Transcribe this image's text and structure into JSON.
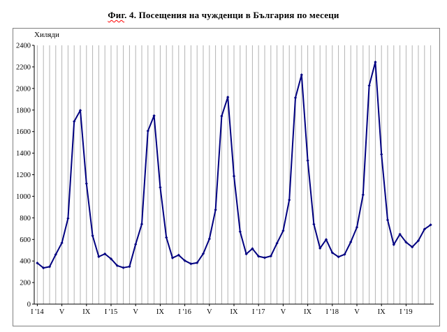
{
  "title": {
    "part1": "Фиг",
    "part2": ". 4. Посещения на чужденци в България по месеци"
  },
  "chart": {
    "y_axis_title": "Хиляди"
  },
  "chart_data": {
    "type": "line",
    "title": "Фиг. 4. Посещения на чужденци в България по месеци",
    "ylabel": "Хиляди",
    "xlabel": "",
    "ylim": [
      0,
      2400
    ],
    "y_tick_step": 200,
    "y_tick_labels": [
      "0",
      "200",
      "400",
      "600",
      "800",
      "1000",
      "1200",
      "1400",
      "1600",
      "1800",
      "2000",
      "2200",
      "2400"
    ],
    "grid": "vertical gridline at every month",
    "legend": "none",
    "line_color": "#000080",
    "marker": "diamond",
    "x_frequency": "monthly",
    "x_start": "2014-01",
    "x_end": "2019-05",
    "x_tick_labels": [
      {
        "index": 0,
        "label": "I '14"
      },
      {
        "index": 4,
        "label": "V"
      },
      {
        "index": 8,
        "label": "IX"
      },
      {
        "index": 12,
        "label": "I '15"
      },
      {
        "index": 16,
        "label": "V"
      },
      {
        "index": 20,
        "label": "IX"
      },
      {
        "index": 24,
        "label": "I '16"
      },
      {
        "index": 28,
        "label": "V"
      },
      {
        "index": 32,
        "label": "IX"
      },
      {
        "index": 36,
        "label": "I '17"
      },
      {
        "index": 40,
        "label": "V"
      },
      {
        "index": 44,
        "label": "IX"
      },
      {
        "index": 48,
        "label": "I '18"
      },
      {
        "index": 52,
        "label": "V"
      },
      {
        "index": 56,
        "label": "IX"
      },
      {
        "index": 60,
        "label": "I '19"
      }
    ],
    "series": [
      {
        "name": "Посещения на чужденци в България (хиляди)",
        "values": [
          381,
          336,
          347,
          460,
          568,
          795,
          1694,
          1797,
          1117,
          634,
          440,
          466,
          420,
          357,
          338,
          348,
          555,
          742,
          1606,
          1747,
          1083,
          618,
          428,
          455,
          403,
          374,
          383,
          468,
          605,
          874,
          1744,
          1920,
          1187,
          672,
          465,
          514,
          443,
          430,
          446,
          565,
          680,
          966,
          1914,
          2127,
          1332,
          741,
          518,
          599,
          477,
          438,
          461,
          576,
          712,
          1014,
          2027,
          2245,
          1389,
          780,
          551,
          648,
          574,
          529,
          589,
          695,
          735
        ]
      }
    ]
  }
}
